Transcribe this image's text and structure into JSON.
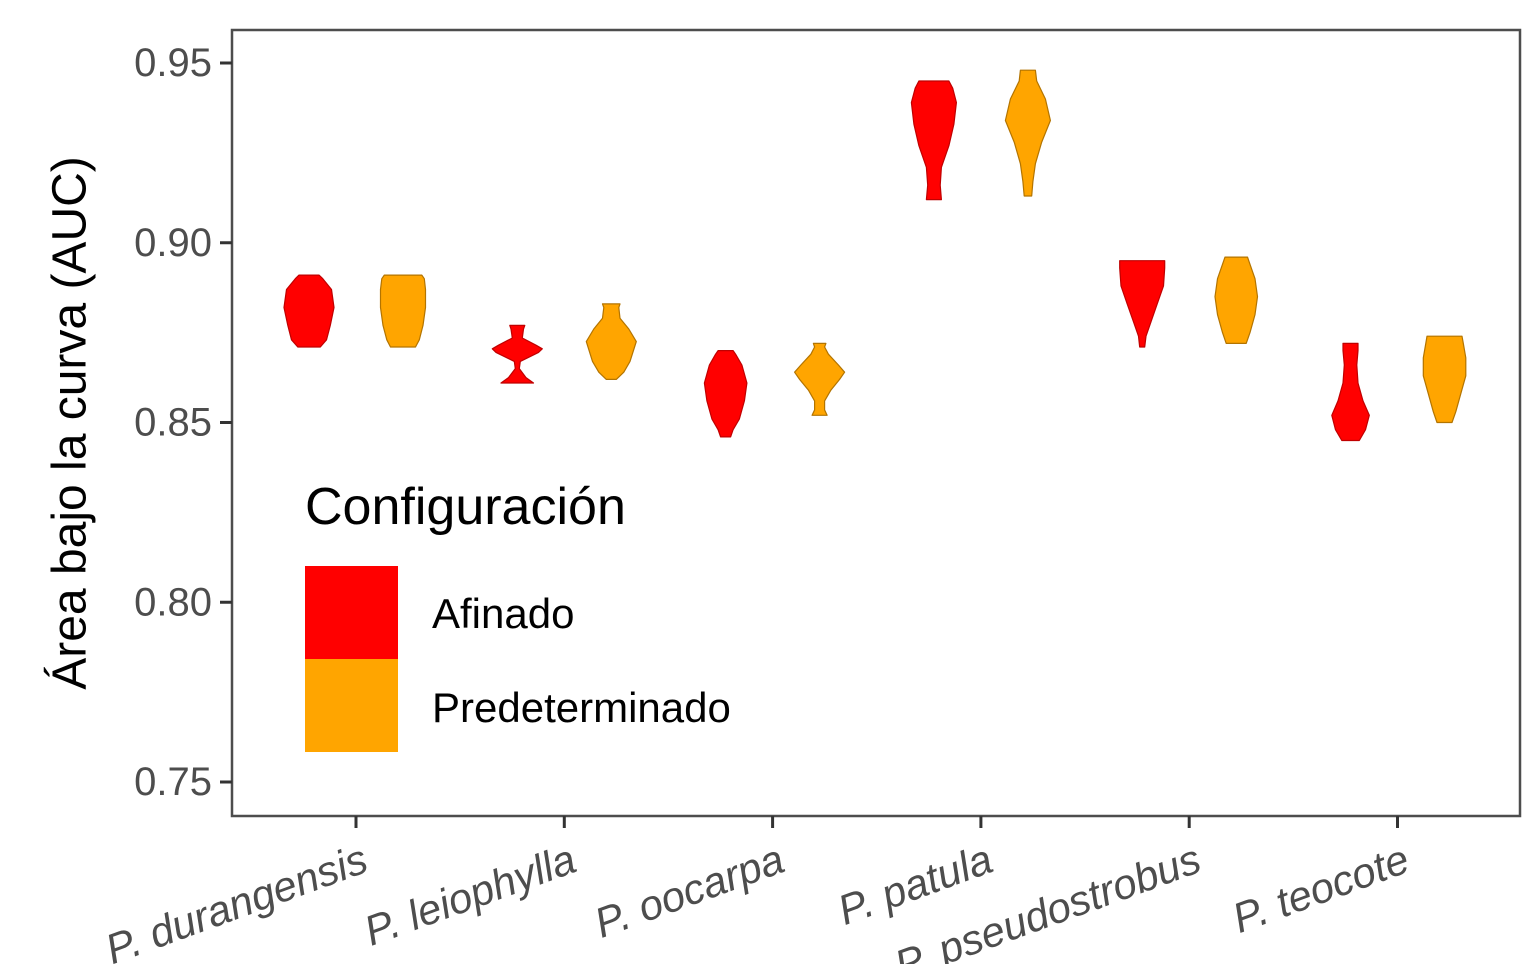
{
  "chart_data": {
    "type": "violin",
    "title": "",
    "xlabel": "",
    "ylabel": "Área bajo la curva (AUC)",
    "ylim": [
      0.74,
      0.96
    ],
    "yticks": [
      0.75,
      0.8,
      0.85,
      0.9,
      0.95
    ],
    "ytick_labels": [
      "0.75",
      "0.80",
      "0.85",
      "0.90",
      "0.95"
    ],
    "categories": [
      "P. durangensis",
      "P. leiophylla",
      "P. oocarpa",
      "P. patula",
      "P. pseudostrobus",
      "P. teocote"
    ],
    "grid": false,
    "legend": {
      "title": "Configuración",
      "position": "inside-bottom-left"
    },
    "series": [
      {
        "name": "Afinado",
        "color": "#ff0000",
        "stroke": "#c00000",
        "values": [
          {
            "min": 0.871,
            "max": 0.891,
            "profile": [
              [
                0.871,
                0.45
              ],
              [
                0.873,
                0.7
              ],
              [
                0.877,
                0.85
              ],
              [
                0.882,
                1.0
              ],
              [
                0.887,
                0.9
              ],
              [
                0.89,
                0.55
              ],
              [
                0.891,
                0.4
              ]
            ]
          },
          {
            "min": 0.861,
            "max": 0.877,
            "profile": [
              [
                0.861,
                0.65
              ],
              [
                0.8625,
                0.35
              ],
              [
                0.865,
                0.08
              ],
              [
                0.867,
                0.12
              ],
              [
                0.8695,
                0.85
              ],
              [
                0.8705,
                1.0
              ],
              [
                0.8715,
                0.75
              ],
              [
                0.8735,
                0.2
              ],
              [
                0.876,
                0.25
              ],
              [
                0.877,
                0.3
              ]
            ]
          },
          {
            "min": 0.846,
            "max": 0.87,
            "profile": [
              [
                0.846,
                0.2
              ],
              [
                0.848,
                0.3
              ],
              [
                0.851,
                0.55
              ],
              [
                0.856,
                0.75
              ],
              [
                0.861,
                0.85
              ],
              [
                0.866,
                0.65
              ],
              [
                0.869,
                0.4
              ],
              [
                0.87,
                0.3
              ]
            ]
          },
          {
            "min": 0.912,
            "max": 0.945,
            "profile": [
              [
                0.912,
                0.3
              ],
              [
                0.916,
                0.25
              ],
              [
                0.921,
                0.3
              ],
              [
                0.927,
                0.6
              ],
              [
                0.933,
                0.8
              ],
              [
                0.939,
                0.9
              ],
              [
                0.943,
                0.75
              ],
              [
                0.945,
                0.6
              ]
            ]
          },
          {
            "min": 0.871,
            "max": 0.895,
            "profile": [
              [
                0.871,
                0.1
              ],
              [
                0.874,
                0.15
              ],
              [
                0.878,
                0.35
              ],
              [
                0.883,
                0.6
              ],
              [
                0.888,
                0.85
              ],
              [
                0.893,
                0.9
              ],
              [
                0.895,
                0.9
              ]
            ]
          },
          {
            "min": 0.845,
            "max": 0.872,
            "profile": [
              [
                0.845,
                0.35
              ],
              [
                0.848,
                0.6
              ],
              [
                0.852,
                0.75
              ],
              [
                0.856,
                0.5
              ],
              [
                0.861,
                0.3
              ],
              [
                0.866,
                0.25
              ],
              [
                0.87,
                0.3
              ],
              [
                0.872,
                0.3
              ]
            ]
          }
        ]
      },
      {
        "name": "Predeterminado",
        "color": "#ffa500",
        "stroke": "#b37400",
        "values": [
          {
            "min": 0.871,
            "max": 0.891,
            "profile": [
              [
                0.871,
                0.5
              ],
              [
                0.873,
                0.65
              ],
              [
                0.877,
                0.8
              ],
              [
                0.882,
                0.9
              ],
              [
                0.887,
                0.9
              ],
              [
                0.89,
                0.85
              ],
              [
                0.891,
                0.75
              ]
            ]
          },
          {
            "min": 0.862,
            "max": 0.883,
            "profile": [
              [
                0.862,
                0.2
              ],
              [
                0.864,
                0.5
              ],
              [
                0.867,
                0.75
              ],
              [
                0.8725,
                1.0
              ],
              [
                0.876,
                0.7
              ],
              [
                0.879,
                0.35
              ],
              [
                0.882,
                0.3
              ],
              [
                0.883,
                0.35
              ]
            ]
          },
          {
            "min": 0.852,
            "max": 0.872,
            "profile": [
              [
                0.852,
                0.3
              ],
              [
                0.8535,
                0.2
              ],
              [
                0.856,
                0.2
              ],
              [
                0.859,
                0.45
              ],
              [
                0.862,
                0.8
              ],
              [
                0.864,
                1.0
              ],
              [
                0.866,
                0.75
              ],
              [
                0.869,
                0.35
              ],
              [
                0.871,
                0.2
              ],
              [
                0.872,
                0.25
              ]
            ]
          },
          {
            "min": 0.913,
            "max": 0.948,
            "profile": [
              [
                0.913,
                0.15
              ],
              [
                0.917,
                0.2
              ],
              [
                0.922,
                0.3
              ],
              [
                0.928,
                0.55
              ],
              [
                0.934,
                0.9
              ],
              [
                0.94,
                0.7
              ],
              [
                0.945,
                0.35
              ],
              [
                0.948,
                0.3
              ]
            ]
          },
          {
            "min": 0.872,
            "max": 0.896,
            "profile": [
              [
                0.872,
                0.4
              ],
              [
                0.875,
                0.55
              ],
              [
                0.88,
                0.75
              ],
              [
                0.885,
                0.85
              ],
              [
                0.89,
                0.75
              ],
              [
                0.894,
                0.55
              ],
              [
                0.896,
                0.45
              ]
            ]
          },
          {
            "min": 0.85,
            "max": 0.874,
            "profile": [
              [
                0.85,
                0.3
              ],
              [
                0.853,
                0.45
              ],
              [
                0.858,
                0.65
              ],
              [
                0.863,
                0.85
              ],
              [
                0.868,
                0.85
              ],
              [
                0.872,
                0.75
              ],
              [
                0.874,
                0.7
              ]
            ]
          }
        ]
      }
    ]
  }
}
